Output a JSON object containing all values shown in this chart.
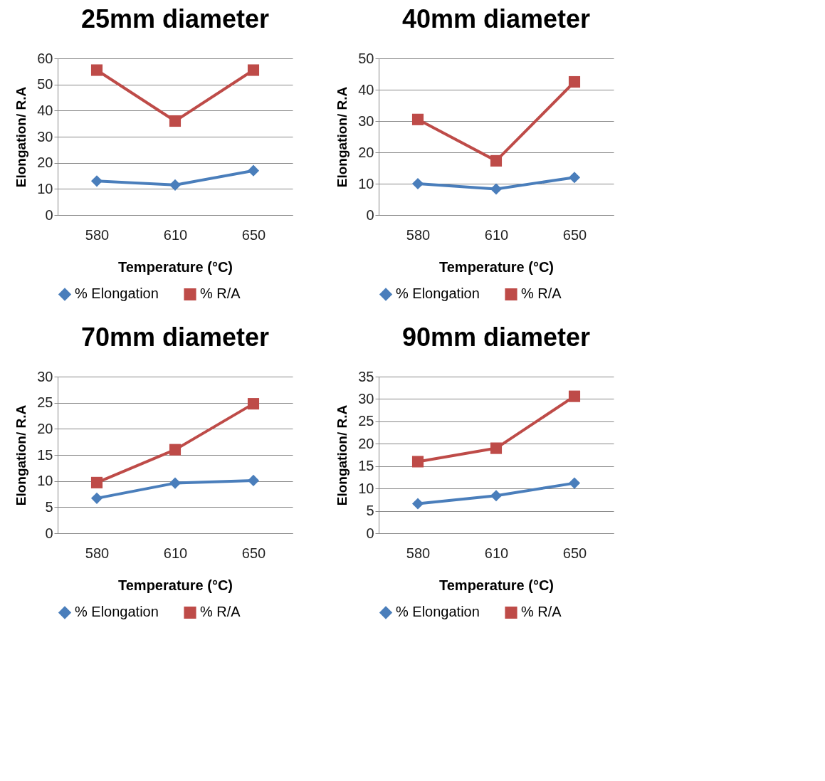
{
  "chart_data": [
    {
      "type": "line",
      "title": "25mm diameter",
      "xlabel": "Temperature (°C)",
      "ylabel": "Elongation/ R.A",
      "categories": [
        "580",
        "610",
        "650"
      ],
      "ylim": [
        0,
        60
      ],
      "yticks": [
        0,
        10,
        20,
        30,
        40,
        50,
        60
      ],
      "grid": "y",
      "legend": "bottom",
      "line_style": "solid",
      "series": [
        {
          "name": "% Elongation",
          "color": "#4a7ebb",
          "marker": "diamond",
          "values": [
            13,
            11.5,
            17
          ]
        },
        {
          "name": "% R/A",
          "color": "#be4b48",
          "marker": "square",
          "values": [
            55.5,
            36,
            55.5
          ]
        }
      ]
    },
    {
      "type": "line",
      "title": "40mm diameter",
      "xlabel": "Temperature (°C)",
      "ylabel": "Elongation/ R.A",
      "categories": [
        "580",
        "610",
        "650"
      ],
      "ylim": [
        0,
        50
      ],
      "yticks": [
        0,
        10,
        20,
        30,
        40,
        50
      ],
      "grid": "y",
      "legend": "bottom",
      "line_style": "solid",
      "series": [
        {
          "name": "% Elongation",
          "color": "#4a7ebb",
          "marker": "diamond",
          "values": [
            10,
            8.3,
            12
          ]
        },
        {
          "name": "% R/A",
          "color": "#be4b48",
          "marker": "square",
          "values": [
            30.5,
            17.3,
            42.5
          ]
        }
      ]
    },
    {
      "type": "line",
      "title": "70mm diameter",
      "xlabel": "Temperature (°C)",
      "ylabel": "Elongation/ R.A",
      "categories": [
        "580",
        "610",
        "650"
      ],
      "ylim": [
        0,
        30
      ],
      "yticks": [
        0,
        5,
        10,
        15,
        20,
        25,
        30
      ],
      "grid": "y",
      "legend": "bottom",
      "line_style": "solid",
      "series": [
        {
          "name": "% Elongation",
          "color": "#4a7ebb",
          "marker": "diamond",
          "values": [
            6.7,
            9.6,
            10.1
          ]
        },
        {
          "name": "% R/A",
          "color": "#be4b48",
          "marker": "square",
          "values": [
            9.7,
            16,
            24.8
          ]
        }
      ]
    },
    {
      "type": "line",
      "title": "90mm diameter",
      "xlabel": "Temperature (°C)",
      "ylabel": "Elongation/ R.A",
      "categories": [
        "580",
        "610",
        "650"
      ],
      "ylim": [
        0,
        35
      ],
      "yticks": [
        0,
        5,
        10,
        15,
        20,
        25,
        30,
        35
      ],
      "grid": "y",
      "legend": "bottom",
      "line_style": "solid",
      "series": [
        {
          "name": "% Elongation",
          "color": "#4a7ebb",
          "marker": "diamond",
          "values": [
            6.6,
            8.4,
            11.2
          ]
        },
        {
          "name": "% R/A",
          "color": "#be4b48",
          "marker": "square",
          "values": [
            16,
            19,
            30.6
          ]
        }
      ]
    }
  ]
}
